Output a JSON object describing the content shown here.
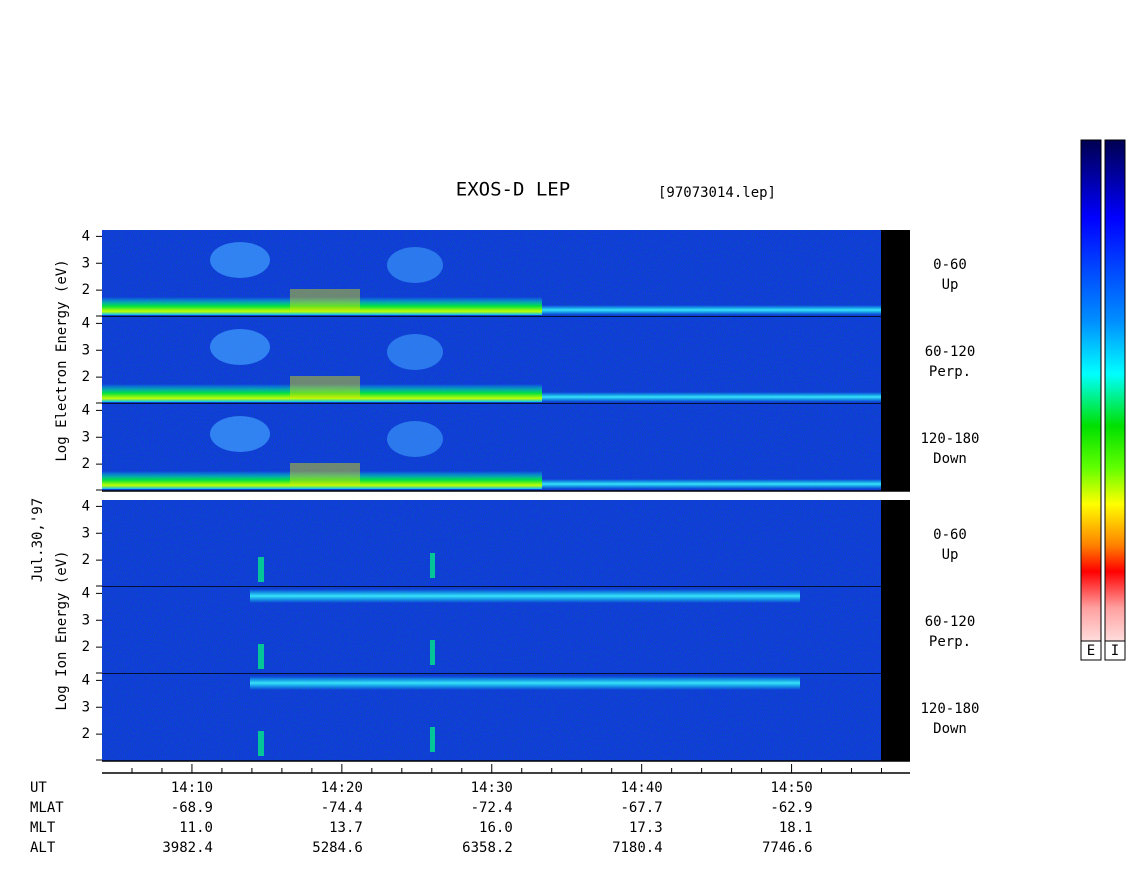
{
  "title": "EXOS-D LEP",
  "file_label": "[97073014.lep]",
  "date_label": "Jul.30,'97",
  "colorbar_labels": [
    "E",
    "I"
  ],
  "chart_data": {
    "type": "spectrogram",
    "xlim": [
      844,
      897.9
    ],
    "xticks": [
      {
        "value": 850,
        "label": "14:10"
      },
      {
        "value": 860,
        "label": "14:20"
      },
      {
        "value": 870,
        "label": "14:30"
      },
      {
        "value": 880,
        "label": "14:40"
      },
      {
        "value": 890,
        "label": "14:50"
      }
    ],
    "xminor_ticks": [
      846,
      848,
      852,
      854,
      856,
      858,
      862,
      864,
      866,
      868,
      872,
      874,
      876,
      878,
      882,
      884,
      886,
      888,
      892,
      894,
      896
    ],
    "groups": [
      {
        "axis_label": "Log Electron Energy (eV)",
        "panels": [
          {
            "pitch_angle": "0-60",
            "direction": "Up",
            "ylim": [
              1,
              4.2
            ],
            "yticks": [
              2,
              3,
              4
            ]
          },
          {
            "pitch_angle": "60-120",
            "direction": "Perp.",
            "ylim": [
              1,
              4.2
            ],
            "yticks": [
              2,
              3,
              4
            ]
          },
          {
            "pitch_angle": "120-180",
            "direction": "Down",
            "ylim": [
              1,
              4.2
            ],
            "yticks": [
              2,
              3,
              4
            ]
          }
        ]
      },
      {
        "axis_label": "Log Ion Energy (eV)",
        "panels": [
          {
            "pitch_angle": "0-60",
            "direction": "Up",
            "ylim": [
              1,
              4.2
            ],
            "yticks": [
              2,
              3,
              4
            ]
          },
          {
            "pitch_angle": "60-120",
            "direction": "Perp.",
            "ylim": [
              1,
              4.2
            ],
            "yticks": [
              2,
              3,
              4
            ]
          },
          {
            "pitch_angle": "120-180",
            "direction": "Down",
            "ylim": [
              1,
              4.2
            ],
            "yticks": [
              2,
              3,
              4
            ]
          }
        ]
      }
    ],
    "orbit": {
      "row_labels": [
        "UT",
        "MLAT",
        "MLT",
        "ALT"
      ],
      "rows": [
        [
          "-68.9",
          "-74.4",
          "-72.4",
          "-67.7",
          "-62.9"
        ],
        [
          "11.0",
          "13.7",
          "16.0",
          "17.3",
          "18.1"
        ],
        [
          "3982.4",
          "5284.6",
          "6358.2",
          "7180.4",
          "7746.6"
        ]
      ]
    }
  }
}
